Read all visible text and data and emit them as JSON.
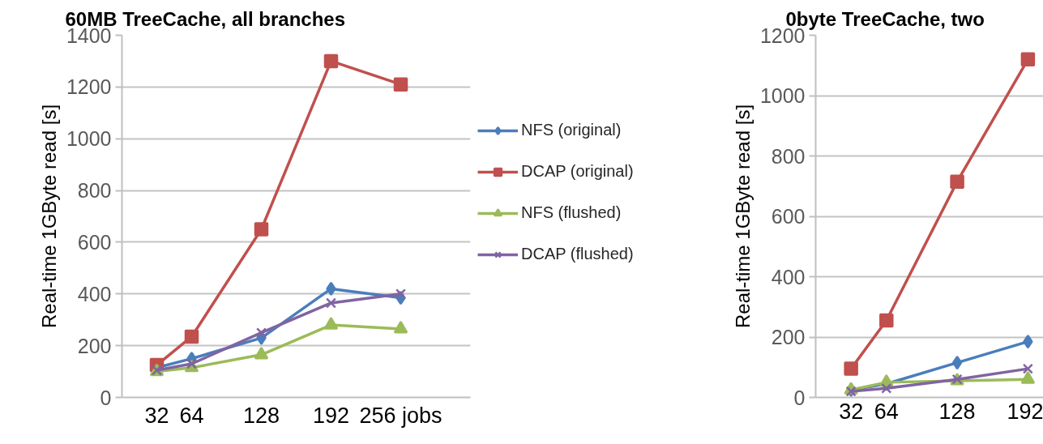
{
  "chart_data": [
    {
      "type": "line",
      "title": "60MB TreeCache, all branches",
      "ylabel": "Real-time 1GByte read [s]",
      "x": [
        32,
        64,
        128,
        192,
        256
      ],
      "xlim": [
        0,
        320
      ],
      "xticks": [
        32,
        64,
        128,
        192,
        {
          "value": 256,
          "label": "256 jobs"
        }
      ],
      "ylim": [
        0,
        1400
      ],
      "yticks": [
        0,
        200,
        400,
        600,
        800,
        1000,
        1200,
        1400
      ],
      "grid": "y",
      "legend": "right",
      "line_style": "solid",
      "series": [
        {
          "name": "NFS (original)",
          "color": "#4a7ebb",
          "marker": "diamond",
          "values": [
            115,
            150,
            230,
            420,
            385
          ]
        },
        {
          "name": "DCAP (original)",
          "color": "#c0504d",
          "marker": "square",
          "values": [
            125,
            235,
            650,
            1300,
            1210
          ]
        },
        {
          "name": "NFS (flushed)",
          "color": "#9bbb59",
          "marker": "triangle",
          "values": [
            100,
            115,
            165,
            280,
            265
          ]
        },
        {
          "name": "DCAP (flushed)",
          "color": "#8064a2",
          "marker": "cross",
          "values": [
            105,
            130,
            250,
            365,
            400
          ]
        }
      ]
    },
    {
      "type": "line",
      "title": "0byte TreeCache, two",
      "ylabel": "Real-time 1GByte read [s]",
      "x": [
        32,
        64,
        128,
        192
      ],
      "xlim": [
        0,
        206
      ],
      "xticks": [
        32,
        64,
        128,
        192
      ],
      "ylim": [
        0,
        1200
      ],
      "yticks": [
        0,
        200,
        400,
        600,
        800,
        1000,
        1200
      ],
      "grid": "y",
      "line_style": "solid",
      "series": [
        {
          "color": "#4a7ebb",
          "marker": "diamond",
          "values": [
            25,
            45,
            115,
            185
          ]
        },
        {
          "color": "#c0504d",
          "marker": "square",
          "values": [
            95,
            255,
            715,
            1120
          ]
        },
        {
          "color": "#9bbb59",
          "marker": "triangle",
          "values": [
            25,
            50,
            55,
            60
          ]
        },
        {
          "color": "#8064a2",
          "marker": "cross",
          "values": [
            20,
            30,
            60,
            95
          ]
        }
      ]
    }
  ]
}
